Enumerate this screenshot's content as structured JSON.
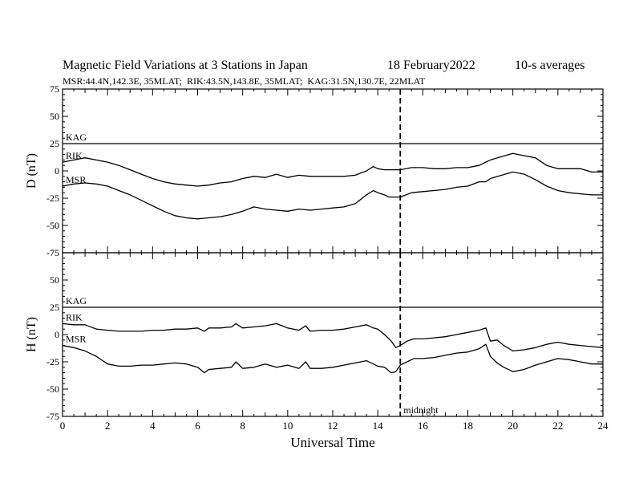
{
  "header": {
    "title": "Magnetic Field Variations at 3 Stations in Japan",
    "date": "18 February2022",
    "averaging": "10-s averages",
    "stations": "MSR:44.4N,142.3E, 35MLAT;  RIK:43.5N,143.8E, 35MLAT;  KAG:31.5N,130.7E, 22MLAT"
  },
  "colors": {
    "line": "#000000",
    "background": "#ffffff"
  },
  "chart_data": [
    {
      "type": "line",
      "id": "D",
      "ylabel": "D (nT)",
      "xlabel": "",
      "xlim": [
        0,
        24
      ],
      "ylim": [
        -75,
        75
      ],
      "yticks": [
        75,
        50,
        25,
        0,
        -25,
        -50,
        -75
      ],
      "xticks": [
        0,
        2,
        4,
        6,
        8,
        10,
        12,
        14,
        16,
        18,
        20,
        22,
        24
      ],
      "series": [
        {
          "name": "KAG",
          "x": [
            0,
            24
          ],
          "y": [
            25,
            25
          ]
        },
        {
          "name": "RIK",
          "x": [
            0,
            0.5,
            1,
            1.5,
            2,
            2.5,
            3,
            3.5,
            4,
            4.5,
            5,
            5.5,
            6,
            6.5,
            7,
            7.5,
            8,
            8.5,
            9,
            9.5,
            10,
            10.5,
            11,
            11.5,
            12,
            12.5,
            13,
            13.5,
            13.8,
            14,
            14.3,
            14.5,
            15,
            15.5,
            16,
            16.5,
            17,
            17.5,
            18,
            18.5,
            18.8,
            19,
            19.5,
            20,
            20.5,
            21,
            21.5,
            22,
            22.5,
            23,
            23.5,
            24
          ],
          "y": [
            8,
            10,
            12,
            10,
            8,
            5,
            1,
            -3,
            -7,
            -10,
            -12,
            -13,
            -14,
            -13,
            -11,
            -10,
            -7,
            -5,
            -6,
            -3,
            -6,
            -4,
            -5,
            -5,
            -5,
            -5,
            -4,
            0,
            4,
            2,
            1,
            1,
            1,
            3,
            3,
            2,
            2,
            3,
            3,
            5,
            8,
            10,
            13,
            16,
            14,
            12,
            5,
            2,
            2,
            2,
            -1,
            -1
          ]
        },
        {
          "name": "MSR",
          "x": [
            0,
            0.5,
            1,
            1.5,
            2,
            2.5,
            3,
            3.5,
            4,
            4.5,
            5,
            5.5,
            6,
            6.5,
            7,
            7.5,
            8,
            8.5,
            9,
            9.5,
            10,
            10.5,
            11,
            11.5,
            12,
            12.5,
            13,
            13.5,
            13.8,
            14,
            14.3,
            14.5,
            15,
            15.5,
            16,
            16.5,
            17,
            17.5,
            18,
            18.5,
            18.8,
            19,
            19.5,
            20,
            20.5,
            21,
            21.5,
            22,
            22.5,
            23,
            23.5,
            24
          ],
          "y": [
            -14,
            -12,
            -11,
            -12,
            -14,
            -18,
            -22,
            -27,
            -32,
            -37,
            -41,
            -43,
            -44,
            -43,
            -42,
            -40,
            -37,
            -33,
            -35,
            -36,
            -37,
            -35,
            -36,
            -35,
            -34,
            -33,
            -30,
            -22,
            -18,
            -20,
            -22,
            -24,
            -24,
            -20,
            -19,
            -18,
            -17,
            -15,
            -14,
            -10,
            -10,
            -7,
            -4,
            -1,
            -3,
            -8,
            -14,
            -18,
            -20,
            -21,
            -22,
            -22
          ]
        }
      ]
    },
    {
      "type": "line",
      "id": "H",
      "ylabel": "H (nT)",
      "xlabel": "Universal Time",
      "xlim": [
        0,
        24
      ],
      "ylim": [
        -75,
        75
      ],
      "yticks": [
        75,
        50,
        25,
        0,
        -25,
        -50,
        -75
      ],
      "xticks": [
        0,
        2,
        4,
        6,
        8,
        10,
        12,
        14,
        16,
        18,
        20,
        22,
        24
      ],
      "annotation": {
        "text": "midnight",
        "x": 15
      },
      "series": [
        {
          "name": "KAG",
          "x": [
            0,
            24
          ],
          "y": [
            25,
            25
          ]
        },
        {
          "name": "RIK",
          "x": [
            0,
            0.5,
            1,
            1.5,
            2,
            2.5,
            3,
            3.5,
            4,
            4.5,
            5,
            5.5,
            6,
            6.3,
            6.5,
            7,
            7.5,
            7.7,
            8,
            8.5,
            9,
            9.5,
            10,
            10.5,
            10.8,
            11,
            11.5,
            12,
            12.5,
            13,
            13.5,
            13.8,
            14,
            14.3,
            14.6,
            14.8,
            15,
            15.3,
            15.6,
            16,
            16.5,
            17,
            17.5,
            18,
            18.5,
            18.8,
            19,
            19.3,
            19.6,
            20,
            20.5,
            21,
            21.5,
            22,
            22.5,
            23,
            23.5,
            24
          ],
          "y": [
            10,
            9,
            9,
            5,
            4,
            3,
            3,
            3,
            4,
            4,
            5,
            5,
            6,
            3,
            6,
            6,
            7,
            10,
            6,
            7,
            8,
            10,
            6,
            4,
            8,
            3,
            4,
            4,
            5,
            7,
            9,
            6,
            5,
            0,
            -6,
            -12,
            -10,
            -6,
            -4,
            -4,
            -3,
            -2,
            0,
            2,
            4,
            6,
            -6,
            -5,
            -10,
            -15,
            -14,
            -12,
            -9,
            -7,
            -9,
            -10,
            -11,
            -12
          ]
        },
        {
          "name": "MSR",
          "x": [
            0,
            0.5,
            1,
            1.5,
            2,
            2.5,
            3,
            3.5,
            4,
            4.5,
            5,
            5.5,
            6,
            6.3,
            6.5,
            7,
            7.5,
            7.7,
            8,
            8.5,
            9,
            9.5,
            10,
            10.5,
            10.8,
            11,
            11.5,
            12,
            12.5,
            13,
            13.5,
            13.8,
            14,
            14.3,
            14.6,
            14.8,
            15,
            15.3,
            15.6,
            16,
            16.5,
            17,
            17.5,
            18,
            18.5,
            18.8,
            19,
            19.3,
            19.6,
            20,
            20.5,
            21,
            21.5,
            22,
            22.5,
            23,
            23.5,
            24
          ],
          "y": [
            -10,
            -12,
            -15,
            -20,
            -27,
            -29,
            -29,
            -28,
            -28,
            -27,
            -26,
            -27,
            -30,
            -35,
            -32,
            -31,
            -30,
            -25,
            -31,
            -30,
            -27,
            -30,
            -28,
            -31,
            -25,
            -31,
            -31,
            -30,
            -28,
            -26,
            -24,
            -27,
            -29,
            -30,
            -35,
            -34,
            -28,
            -25,
            -22,
            -22,
            -21,
            -19,
            -17,
            -16,
            -13,
            -9,
            -20,
            -26,
            -30,
            -34,
            -32,
            -28,
            -25,
            -22,
            -23,
            -25,
            -27,
            -27
          ]
        }
      ]
    }
  ]
}
